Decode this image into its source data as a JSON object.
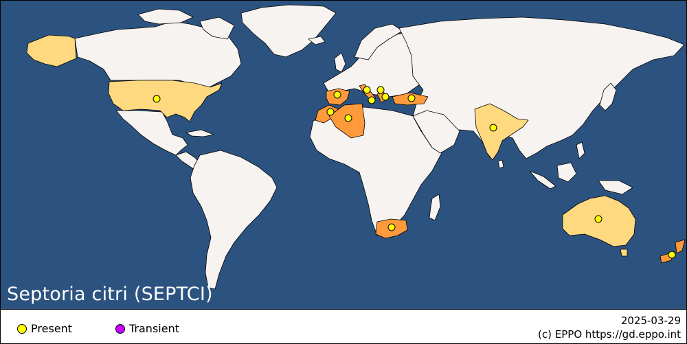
{
  "map": {
    "title": "Septoria citri (SEPTCI)",
    "colors": {
      "ocean": "#2c5380",
      "land": "#f6f3f1",
      "present_region": "#ffd97f",
      "present_country": "#ff9a3c",
      "border": "#000000",
      "dot_present": "#ffff00",
      "dot_transient": "#cc00ff"
    }
  },
  "legend": {
    "present_label": "Present",
    "transient_label": "Transient"
  },
  "footer": {
    "date": "2025-03-29",
    "copyright": "(c) EPPO https://gd.eppo.int"
  }
}
